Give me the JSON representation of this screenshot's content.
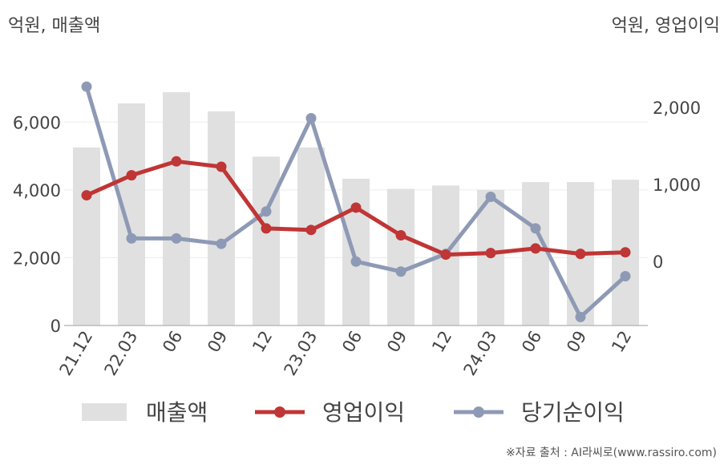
{
  "left_unit_label": "억원, 매출액",
  "right_unit_label": "억원, 영업이익",
  "source_text": "※자료 출처 : AI라씨로(www.rassiro.com)",
  "colors": {
    "revenue": "#e0e0e0",
    "operating_profit": "#c03535",
    "net_income": "#8e9ab5",
    "axis": "#bbbbbb",
    "grid": "#ececec",
    "text": "#444444"
  },
  "chart_data": {
    "type": "bar+line",
    "categories": [
      "21.12",
      "22.03",
      "06",
      "09",
      "12",
      "23.03",
      "06",
      "09",
      "12",
      "24.03",
      "06",
      "09",
      "12"
    ],
    "left_axis": {
      "label": "억원, 매출액",
      "ylim": [
        0,
        7000
      ],
      "ticks": [
        0,
        2000,
        4000,
        6000
      ],
      "tick_labels": [
        "0",
        "2,000",
        "4,000",
        "6,000"
      ]
    },
    "right_axis": {
      "label": "억원, 영업이익",
      "ylim": [
        -830,
        2250
      ],
      "ticks": [
        0,
        1000,
        2000
      ],
      "tick_labels": [
        "0",
        "1,000",
        "2,000"
      ]
    },
    "grid": true,
    "legend_position": "bottom",
    "series": [
      {
        "name": "매출액",
        "type": "bar",
        "axis": "left",
        "values": [
          5250,
          6550,
          6880,
          6320,
          4980,
          5250,
          4330,
          4030,
          4130,
          4000,
          4230,
          4230,
          4300
        ]
      },
      {
        "name": "영업이익",
        "type": "line",
        "axis": "right",
        "values": [
          860,
          1120,
          1300,
          1230,
          430,
          410,
          700,
          340,
          90,
          110,
          170,
          100,
          120
        ]
      },
      {
        "name": "당기순이익",
        "type": "line",
        "axis": "right",
        "values": [
          2270,
          300,
          300,
          230,
          650,
          1860,
          0,
          -130,
          100,
          840,
          430,
          -720,
          -190
        ]
      }
    ]
  }
}
